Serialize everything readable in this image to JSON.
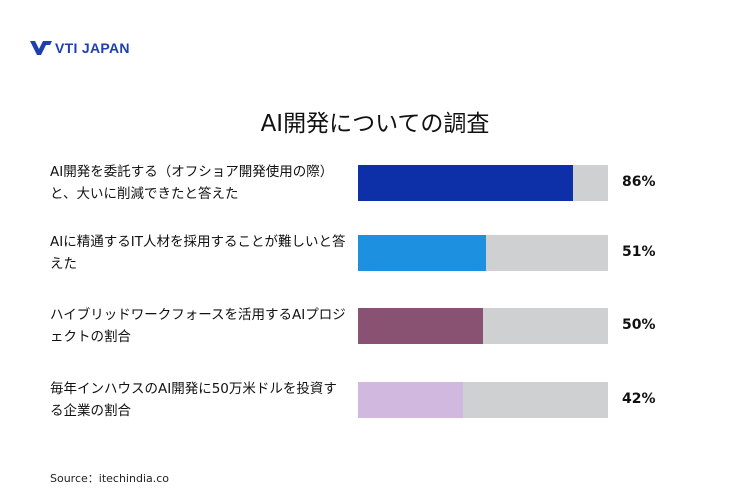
{
  "logo": {
    "text": "VTI JAPAN",
    "color": "#1e3fae"
  },
  "chart_data": {
    "type": "bar",
    "orientation": "horizontal",
    "title": "AI開発についての調査",
    "xlim": [
      0,
      100
    ],
    "track_color": "#cfd0d2",
    "categories": [
      "AI開発を委託する（オフショア開発使用の際）と、大いに削減できたと答えた",
      "AIに精通するIT人材を採用することが難しいと答えた",
      "ハイブリッドワークフォースを活用するAIプロジェクトの割合",
      "毎年インハウスのAI開発に50万米ドルを投資する企業の割合"
    ],
    "values": [
      86,
      51,
      50,
      42
    ],
    "value_labels": [
      "86%",
      "51%",
      "50%",
      "42%"
    ],
    "colors": [
      "#0d2fa8",
      "#1e90e0",
      "#8a5272",
      "#d0b8de"
    ]
  },
  "source": "Source：itechindia.co"
}
